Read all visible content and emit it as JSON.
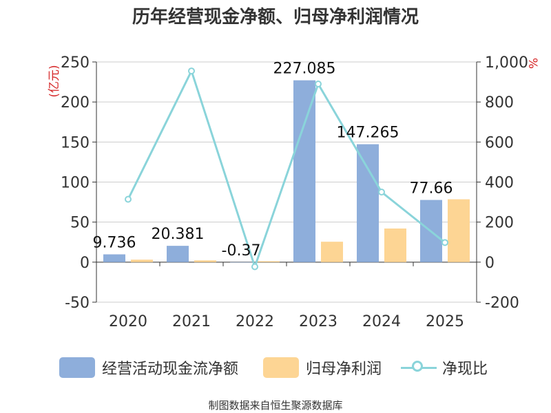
{
  "chart_data": {
    "type": "bar+line",
    "title": "历年经营现金净额、归母净利润情况",
    "categories": [
      "2020",
      "2021",
      "2022",
      "2023",
      "2024",
      "2025"
    ],
    "series": [
      {
        "name": "经营活动现金流净额",
        "type": "bar",
        "axis": "left",
        "values": [
          9.736,
          20.381,
          -0.37,
          227.085,
          147.265,
          77.66
        ],
        "labels": [
          "9.736",
          "20.381",
          "-0.37",
          "227.085",
          "147.265",
          "77.66"
        ]
      },
      {
        "name": "归母净利润",
        "type": "bar",
        "axis": "left",
        "values": [
          3.1,
          2.2,
          1.2,
          25.5,
          42.0,
          78.5
        ]
      },
      {
        "name": "净现比",
        "type": "line",
        "axis": "right",
        "values": [
          314,
          955,
          -23,
          890,
          350,
          98
        ]
      }
    ],
    "ylabel_left": "(亿元)",
    "ylabel_right": "%",
    "ylim_left": [
      -50,
      250
    ],
    "yticks_left": [
      -50,
      0,
      50,
      100,
      150,
      200,
      250
    ],
    "yticklabels_left": [
      "-50",
      "0",
      "50",
      "100",
      "150",
      "200",
      "250"
    ],
    "ylim_right": [
      -200,
      1000
    ],
    "yticks_right": [
      -200,
      0,
      200,
      400,
      600,
      800,
      1000
    ],
    "yticklabels_right": [
      "-200",
      "0",
      "200",
      "400",
      "600",
      "800",
      "1,000"
    ],
    "grid": true,
    "legend_position": "bottom"
  },
  "colors": {
    "bar_cash": "#8eaedb",
    "bar_profit": "#fdd594",
    "line_ratio": "#8ad4da",
    "axis_label_red": "#d62728",
    "source_text": "#c8962a"
  },
  "legend": {
    "cash_label": "经营活动现金流净额",
    "profit_label": "归母净利润",
    "ratio_label": "净现比"
  },
  "source": "制图数据来自恒生聚源数据库"
}
